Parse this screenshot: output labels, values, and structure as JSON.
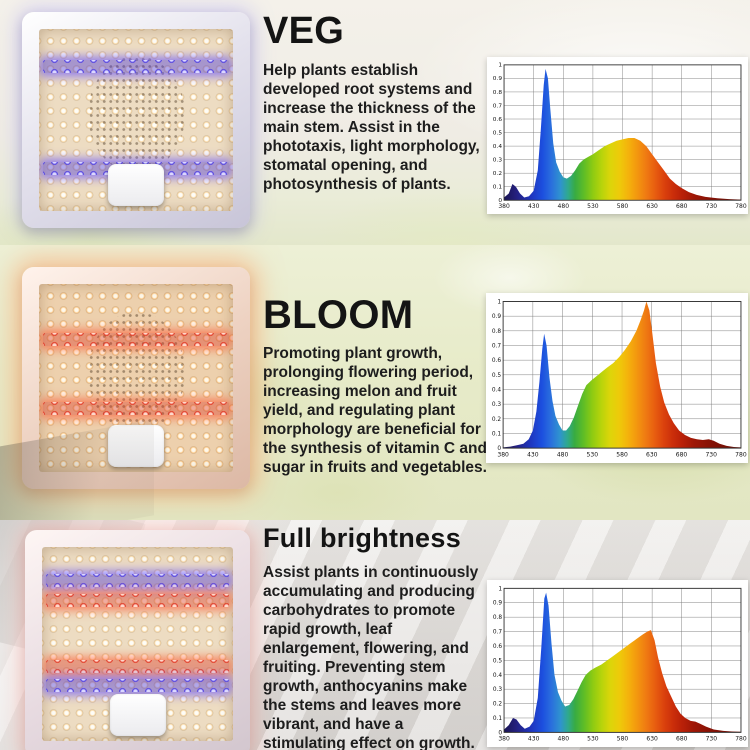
{
  "sections": [
    {
      "title": "VEG",
      "description": "Help plants establish developed root systems and increase the thickness of the main stem. Assist in the phototaxis, light morphology, stomatal opening, and photosynthesis of plants.",
      "panel": {
        "led_base": "warm-white",
        "unlit_center_cluster": true,
        "strips": [
          {
            "color": "blue",
            "top_pct": 17
          },
          {
            "color": "blue",
            "top_pct": 73
          }
        ]
      }
    },
    {
      "title": "BLOOM",
      "description": "Promoting plant growth, prolonging flowering period, increasing melon and fruit yield, and regulating plant morphology are beneficial for the synthesis of vitamin C and sugar in fruits and vegetables.",
      "panel": {
        "led_base": "warm-white",
        "unlit_center_cluster": true,
        "strips": [
          {
            "color": "red",
            "top_pct": 26
          },
          {
            "color": "red",
            "top_pct": 63
          }
        ]
      }
    },
    {
      "title": "Full brightness",
      "description": "Assist plants in continuously accumulating and producing carbohydrates to promote rapid growth, leaf enlargement, flowering, and fruiting. Preventing stem growth, anthocyanins make the stems and leaves more vibrant, and have a stimulating effect on growth.",
      "panel": {
        "led_base": "warm-white",
        "unlit_center_cluster": false,
        "strips": [
          {
            "color": "blue",
            "top_pct": 14
          },
          {
            "color": "red",
            "top_pct": 24
          },
          {
            "color": "red",
            "top_pct": 58
          },
          {
            "color": "blue",
            "top_pct": 68
          }
        ]
      }
    }
  ],
  "colors": {
    "text": "#1b1b1b",
    "chart_card_bg": "#ffffff",
    "blue_strip": "#4a3ae0",
    "red_strip": "#e03420"
  },
  "spectrum_gradient": [
    {
      "nm": 380,
      "color": "#181453"
    },
    {
      "nm": 400,
      "color": "#251f7d"
    },
    {
      "nm": 425,
      "color": "#1f35bd"
    },
    {
      "nm": 445,
      "color": "#1c4fdf"
    },
    {
      "nm": 460,
      "color": "#2a6fdd"
    },
    {
      "nm": 475,
      "color": "#2f93cf"
    },
    {
      "nm": 488,
      "color": "#2fa98e"
    },
    {
      "nm": 500,
      "color": "#38ab42"
    },
    {
      "nm": 515,
      "color": "#5fbd26"
    },
    {
      "nm": 530,
      "color": "#8ecb12"
    },
    {
      "nm": 545,
      "color": "#b8d40b"
    },
    {
      "nm": 560,
      "color": "#ddd50a"
    },
    {
      "nm": 575,
      "color": "#eeca0a"
    },
    {
      "nm": 590,
      "color": "#f4b20c"
    },
    {
      "nm": 605,
      "color": "#f3960f"
    },
    {
      "nm": 620,
      "color": "#ef7a12"
    },
    {
      "nm": 635,
      "color": "#e85e10"
    },
    {
      "nm": 650,
      "color": "#db420d"
    },
    {
      "nm": 665,
      "color": "#cb2e0a"
    },
    {
      "nm": 680,
      "color": "#ba2108"
    },
    {
      "nm": 700,
      "color": "#9f1706"
    },
    {
      "nm": 730,
      "color": "#851105"
    },
    {
      "nm": 780,
      "color": "#690d04"
    }
  ],
  "chart_data": [
    {
      "type": "area",
      "title": "",
      "xlabel": "",
      "ylabel": "",
      "xlim": [
        380,
        780
      ],
      "ylim": [
        0,
        1
      ],
      "grid": true,
      "legend": false,
      "x_ticks": [
        380,
        430,
        480,
        530,
        580,
        630,
        680,
        730,
        780
      ],
      "y_ticks": [
        0,
        0.1,
        0.2,
        0.3,
        0.4,
        0.5,
        0.6,
        0.7,
        0.8,
        0.9,
        1
      ],
      "points": [
        [
          380,
          0.02
        ],
        [
          388,
          0.05
        ],
        [
          394,
          0.12
        ],
        [
          400,
          0.1
        ],
        [
          407,
          0.05
        ],
        [
          414,
          0.02
        ],
        [
          422,
          0.03
        ],
        [
          430,
          0.07
        ],
        [
          437,
          0.22
        ],
        [
          442,
          0.52
        ],
        [
          447,
          0.85
        ],
        [
          450,
          0.97
        ],
        [
          454,
          0.9
        ],
        [
          458,
          0.68
        ],
        [
          463,
          0.42
        ],
        [
          468,
          0.28
        ],
        [
          474,
          0.21
        ],
        [
          480,
          0.17
        ],
        [
          486,
          0.16
        ],
        [
          493,
          0.18
        ],
        [
          500,
          0.22
        ],
        [
          507,
          0.27
        ],
        [
          514,
          0.3
        ],
        [
          522,
          0.32
        ],
        [
          530,
          0.34
        ],
        [
          540,
          0.37
        ],
        [
          550,
          0.4
        ],
        [
          560,
          0.42
        ],
        [
          570,
          0.44
        ],
        [
          580,
          0.45
        ],
        [
          590,
          0.46
        ],
        [
          600,
          0.46
        ],
        [
          610,
          0.44
        ],
        [
          620,
          0.4
        ],
        [
          630,
          0.34
        ],
        [
          640,
          0.28
        ],
        [
          650,
          0.22
        ],
        [
          660,
          0.16
        ],
        [
          670,
          0.12
        ],
        [
          680,
          0.09
        ],
        [
          692,
          0.06
        ],
        [
          705,
          0.04
        ],
        [
          720,
          0.025
        ],
        [
          740,
          0.015
        ],
        [
          760,
          0.008
        ],
        [
          780,
          0.005
        ]
      ]
    },
    {
      "type": "area",
      "title": "",
      "xlabel": "",
      "ylabel": "",
      "xlim": [
        380,
        780
      ],
      "ylim": [
        0,
        1
      ],
      "grid": true,
      "legend": false,
      "x_ticks": [
        380,
        430,
        480,
        530,
        580,
        630,
        680,
        730,
        780
      ],
      "y_ticks": [
        0,
        0.1,
        0.2,
        0.3,
        0.4,
        0.5,
        0.6,
        0.7,
        0.8,
        0.9,
        1
      ],
      "points": [
        [
          380,
          0.005
        ],
        [
          392,
          0.01
        ],
        [
          404,
          0.02
        ],
        [
          414,
          0.03
        ],
        [
          423,
          0.06
        ],
        [
          430,
          0.12
        ],
        [
          436,
          0.25
        ],
        [
          441,
          0.45
        ],
        [
          446,
          0.68
        ],
        [
          449,
          0.78
        ],
        [
          453,
          0.7
        ],
        [
          458,
          0.48
        ],
        [
          463,
          0.32
        ],
        [
          468,
          0.22
        ],
        [
          474,
          0.16
        ],
        [
          480,
          0.12
        ],
        [
          486,
          0.12
        ],
        [
          492,
          0.15
        ],
        [
          499,
          0.21
        ],
        [
          506,
          0.29
        ],
        [
          513,
          0.37
        ],
        [
          520,
          0.43
        ],
        [
          528,
          0.46
        ],
        [
          537,
          0.49
        ],
        [
          546,
          0.52
        ],
        [
          555,
          0.55
        ],
        [
          565,
          0.58
        ],
        [
          575,
          0.62
        ],
        [
          585,
          0.67
        ],
        [
          595,
          0.73
        ],
        [
          604,
          0.8
        ],
        [
          611,
          0.87
        ],
        [
          617,
          0.94
        ],
        [
          621,
          1.0
        ],
        [
          626,
          0.94
        ],
        [
          631,
          0.78
        ],
        [
          637,
          0.58
        ],
        [
          644,
          0.42
        ],
        [
          651,
          0.31
        ],
        [
          659,
          0.23
        ],
        [
          667,
          0.17
        ],
        [
          676,
          0.12
        ],
        [
          686,
          0.09
        ],
        [
          696,
          0.07
        ],
        [
          706,
          0.06
        ],
        [
          716,
          0.055
        ],
        [
          726,
          0.06
        ],
        [
          734,
          0.05
        ],
        [
          744,
          0.03
        ],
        [
          756,
          0.015
        ],
        [
          768,
          0.008
        ],
        [
          780,
          0.005
        ]
      ]
    },
    {
      "type": "area",
      "title": "",
      "xlabel": "",
      "ylabel": "",
      "xlim": [
        380,
        780
      ],
      "ylim": [
        0,
        1
      ],
      "grid": true,
      "legend": false,
      "x_ticks": [
        380,
        430,
        480,
        530,
        580,
        630,
        680,
        730,
        780
      ],
      "y_ticks": [
        0,
        0.1,
        0.2,
        0.3,
        0.4,
        0.5,
        0.6,
        0.7,
        0.8,
        0.9,
        1
      ],
      "points": [
        [
          380,
          0.02
        ],
        [
          388,
          0.05
        ],
        [
          395,
          0.1
        ],
        [
          401,
          0.09
        ],
        [
          408,
          0.05
        ],
        [
          415,
          0.025
        ],
        [
          423,
          0.04
        ],
        [
          430,
          0.08
        ],
        [
          437,
          0.24
        ],
        [
          443,
          0.6
        ],
        [
          448,
          0.93
        ],
        [
          451,
          0.97
        ],
        [
          455,
          0.88
        ],
        [
          460,
          0.62
        ],
        [
          465,
          0.4
        ],
        [
          471,
          0.28
        ],
        [
          477,
          0.22
        ],
        [
          483,
          0.18
        ],
        [
          490,
          0.19
        ],
        [
          497,
          0.23
        ],
        [
          504,
          0.29
        ],
        [
          511,
          0.35
        ],
        [
          518,
          0.4
        ],
        [
          526,
          0.43
        ],
        [
          534,
          0.45
        ],
        [
          544,
          0.47
        ],
        [
          554,
          0.5
        ],
        [
          564,
          0.53
        ],
        [
          574,
          0.56
        ],
        [
          584,
          0.59
        ],
        [
          594,
          0.62
        ],
        [
          604,
          0.65
        ],
        [
          614,
          0.68
        ],
        [
          622,
          0.7
        ],
        [
          628,
          0.71
        ],
        [
          634,
          0.64
        ],
        [
          640,
          0.52
        ],
        [
          647,
          0.41
        ],
        [
          654,
          0.32
        ],
        [
          662,
          0.25
        ],
        [
          670,
          0.18
        ],
        [
          678,
          0.13
        ],
        [
          686,
          0.1
        ],
        [
          695,
          0.08
        ],
        [
          703,
          0.075
        ],
        [
          711,
          0.06
        ],
        [
          721,
          0.04
        ],
        [
          734,
          0.02
        ],
        [
          750,
          0.01
        ],
        [
          765,
          0.006
        ],
        [
          780,
          0.004
        ]
      ]
    }
  ]
}
